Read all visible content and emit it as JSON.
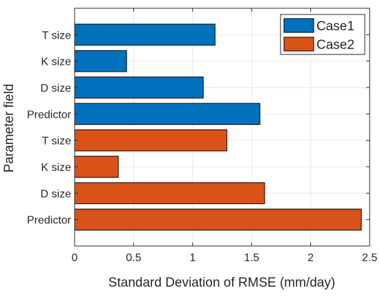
{
  "chart_data": {
    "type": "bar",
    "orientation": "horizontal",
    "categories": [
      "T size",
      "K size",
      "D size",
      "Predictor",
      "T size",
      "K size",
      "D size",
      "Predictor"
    ],
    "values": [
      1.19,
      0.44,
      1.09,
      1.57,
      1.29,
      0.37,
      1.61,
      2.43
    ],
    "bar_series": [
      "Case1",
      "Case1",
      "Case1",
      "Case1",
      "Case2",
      "Case2",
      "Case2",
      "Case2"
    ],
    "series": [
      {
        "name": "Case1",
        "color": "#0072BD"
      },
      {
        "name": "Case2",
        "color": "#D95319"
      }
    ],
    "xlabel": "Standard Deviation of RMSE (mm/day)",
    "ylabel": "Parameter field",
    "xlim": [
      0,
      2.5
    ],
    "xticks": [
      "0",
      "0.5",
      "1",
      "1.5",
      "2",
      "2.5"
    ],
    "grid": true,
    "legend_position": "top-right"
  }
}
